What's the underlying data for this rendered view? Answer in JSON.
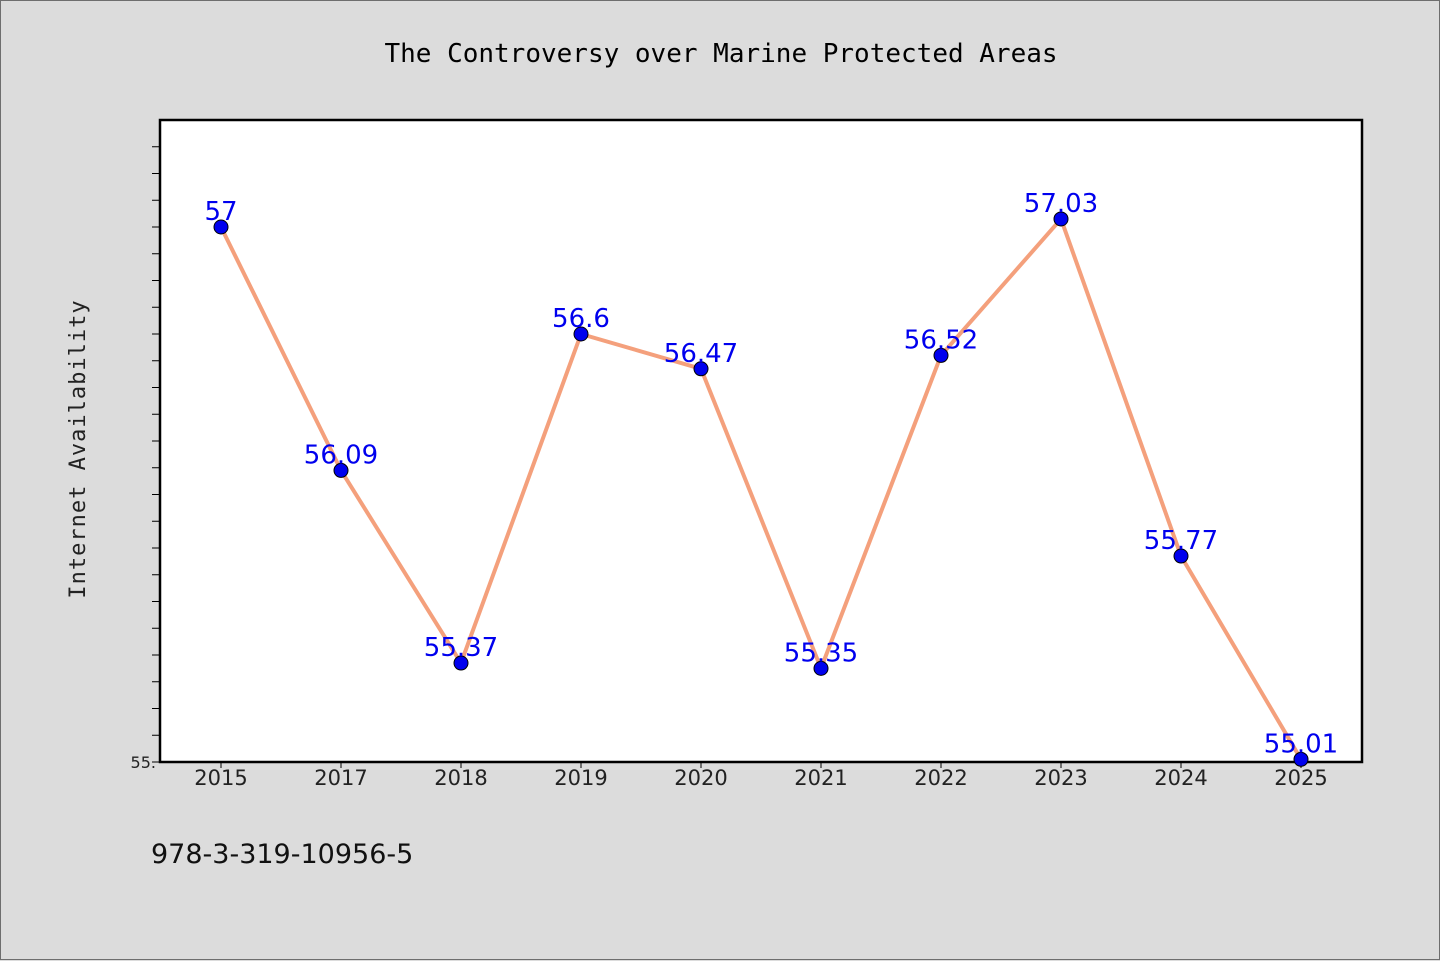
{
  "chart_data": {
    "type": "line",
    "title": "The Controversy over Marine Protected Areas",
    "xlabel": "",
    "ylabel": "Internet Availability",
    "categories": [
      "2015",
      "2017",
      "2018",
      "2019",
      "2020",
      "2021",
      "2022",
      "2023",
      "2024",
      "2025"
    ],
    "series": [
      {
        "values": [
          57,
          56.09,
          55.37,
          56.6,
          56.47,
          55.35,
          56.52,
          57.03,
          55.77,
          55.01
        ]
      }
    ],
    "data_labels": [
      "57",
      "56.09",
      "55.37",
      "56.6",
      "56.47",
      "55.35",
      "56.52",
      "57.03",
      "55.77",
      "55.01"
    ],
    "ylim": [
      55,
      57.4
    ],
    "y_minor_tick_step": 0.1,
    "y_tick_labels": [
      {
        "value": 55,
        "label": "55."
      }
    ],
    "grid": false,
    "legend": "none",
    "line_color": "#f4a07c",
    "marker_color": "#0000ee",
    "data_label_color": "#0000ee"
  },
  "footnote": "978-3-319-10956-5"
}
